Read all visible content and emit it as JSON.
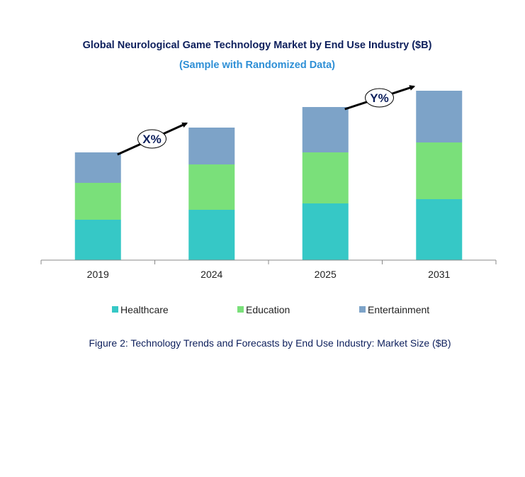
{
  "chart_data": {
    "type": "bar",
    "stacked": true,
    "title": "Global Neurological Game Technology Market by End Use Industry ($B)",
    "subtitle": "(Sample with Randomized Data)",
    "categories": [
      "2019",
      "2024",
      "2025",
      "2031"
    ],
    "series": [
      {
        "name": "Healthcare",
        "color": "#36C8C6",
        "values": [
          57,
          71,
          80,
          86
        ]
      },
      {
        "name": "Education",
        "color": "#7AE07A",
        "values": [
          52,
          64,
          72,
          80
        ]
      },
      {
        "name": "Entertainment",
        "color": "#7DA3C8",
        "values": [
          43,
          52,
          64,
          73
        ]
      }
    ],
    "ylim": [
      0,
      240
    ],
    "y_axis_shown": false,
    "grid": false,
    "legend_placement": "bottom",
    "annotations": [
      {
        "label": "X%",
        "from": "2019",
        "to": "2024"
      },
      {
        "label": "Y%",
        "from": "2025",
        "to": "2031"
      }
    ],
    "caption": "Figure 2: Technology Trends and Forecasts by End Use Industry:  Market Size ($B)",
    "colors": {
      "title": "#0D1F5C",
      "subtitle": "#2E8FD6",
      "caption": "#0D1F5C"
    }
  }
}
